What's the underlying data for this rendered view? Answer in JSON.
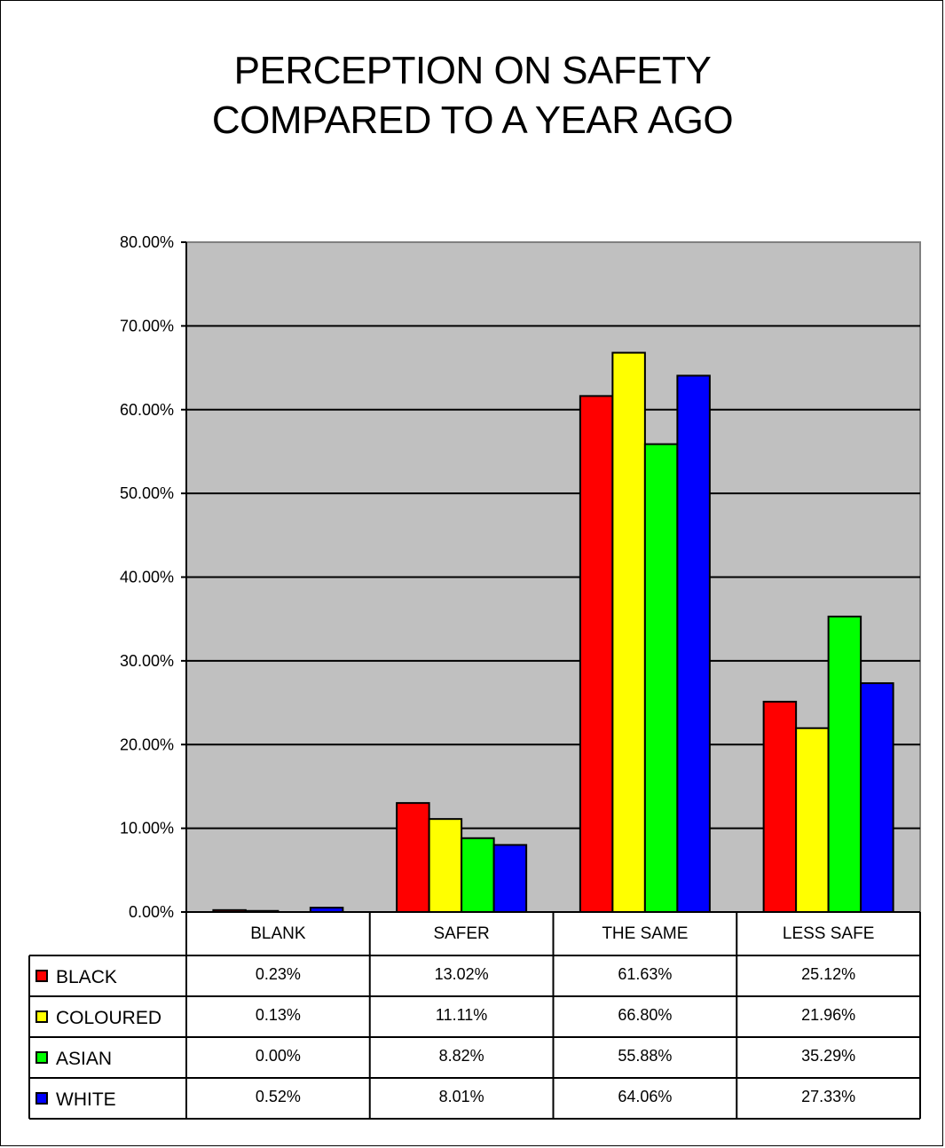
{
  "chart_data": {
    "type": "bar",
    "title_lines": [
      "PERCEPTION ON SAFETY",
      "COMPARED TO A YEAR AGO"
    ],
    "categories": [
      "BLANK",
      "SAFER",
      "THE SAME",
      "LESS SAFE"
    ],
    "series": [
      {
        "name": "BLACK",
        "color": "#ff0000",
        "values": [
          0.23,
          13.02,
          61.63,
          25.12
        ],
        "labels": [
          "0.23%",
          "13.02%",
          "61.63%",
          "25.12%"
        ]
      },
      {
        "name": "COLOURED",
        "color": "#ffff00",
        "values": [
          0.13,
          11.11,
          66.8,
          21.96
        ],
        "labels": [
          "0.13%",
          "11.11%",
          "66.80%",
          "21.96%"
        ]
      },
      {
        "name": "ASIAN",
        "color": "#00ff00",
        "values": [
          0.0,
          8.82,
          55.88,
          35.29
        ],
        "labels": [
          "0.00%",
          "8.82%",
          "55.88%",
          "35.29%"
        ]
      },
      {
        "name": "WHITE",
        "color": "#0000ff",
        "values": [
          0.52,
          8.01,
          64.06,
          27.33
        ],
        "labels": [
          "0.52%",
          "8.01%",
          "64.06%",
          "27.33%"
        ]
      }
    ],
    "yticks": [
      "0.00%",
      "10.00%",
      "20.00%",
      "30.00%",
      "40.00%",
      "50.00%",
      "60.00%",
      "70.00%",
      "80.00%"
    ],
    "ylim": [
      0,
      80
    ],
    "grid": true,
    "plot_background": "#c0c0c0",
    "data_table": true
  }
}
